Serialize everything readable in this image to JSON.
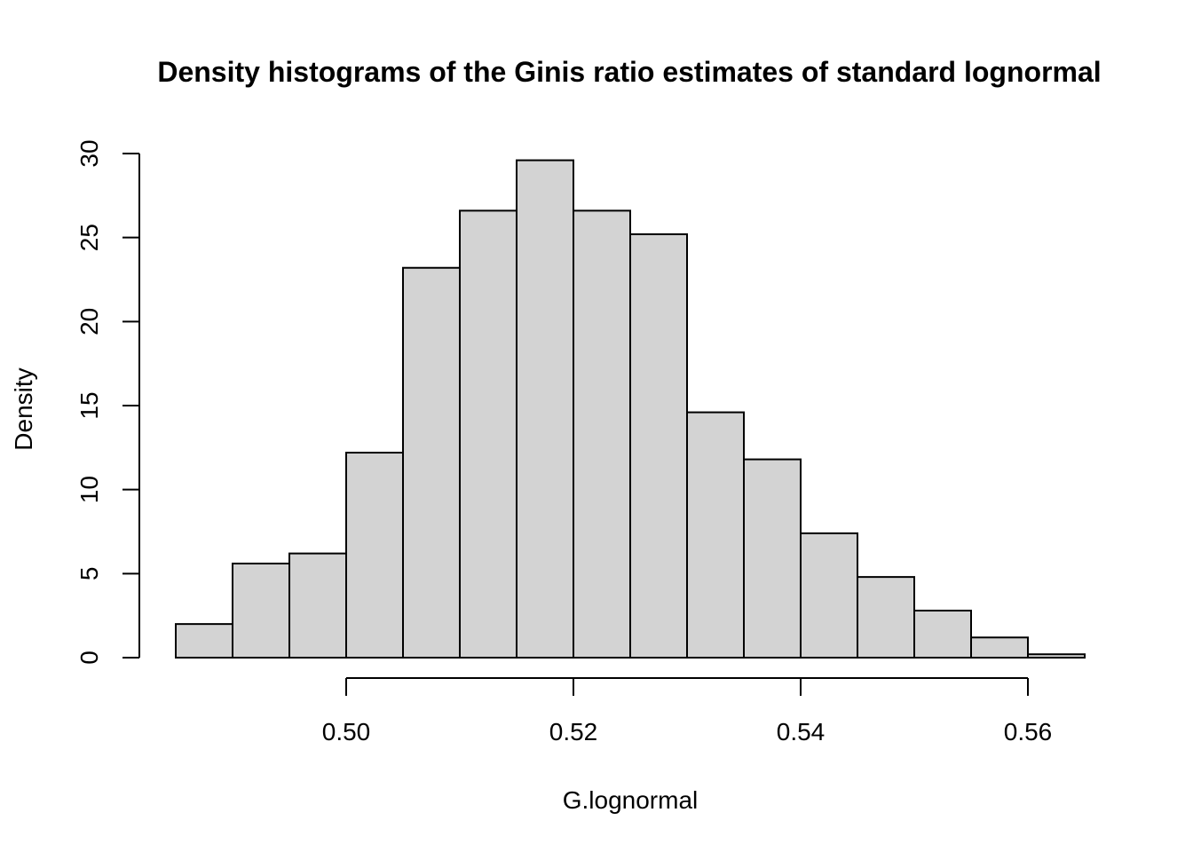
{
  "chart_data": {
    "type": "bar",
    "title": "Density histograms of the Ginis ratio estimates of standard lognormal",
    "xlabel": "G.lognormal",
    "ylabel": "Density",
    "bin_edges": [
      0.485,
      0.49,
      0.495,
      0.5,
      0.505,
      0.51,
      0.515,
      0.52,
      0.525,
      0.53,
      0.535,
      0.54,
      0.545,
      0.55,
      0.555,
      0.56,
      0.565
    ],
    "values": [
      2.0,
      5.6,
      6.2,
      12.2,
      23.2,
      26.6,
      29.6,
      26.6,
      25.2,
      14.6,
      11.8,
      7.4,
      4.8,
      2.8,
      1.2,
      0.2
    ],
    "xlim": [
      0.485,
      0.565
    ],
    "ylim": [
      0,
      30
    ],
    "x_ticks": [
      "0.50",
      "0.52",
      "0.54",
      "0.56"
    ],
    "y_ticks": [
      "0",
      "5",
      "10",
      "15",
      "20",
      "25",
      "30"
    ],
    "grid": false
  }
}
